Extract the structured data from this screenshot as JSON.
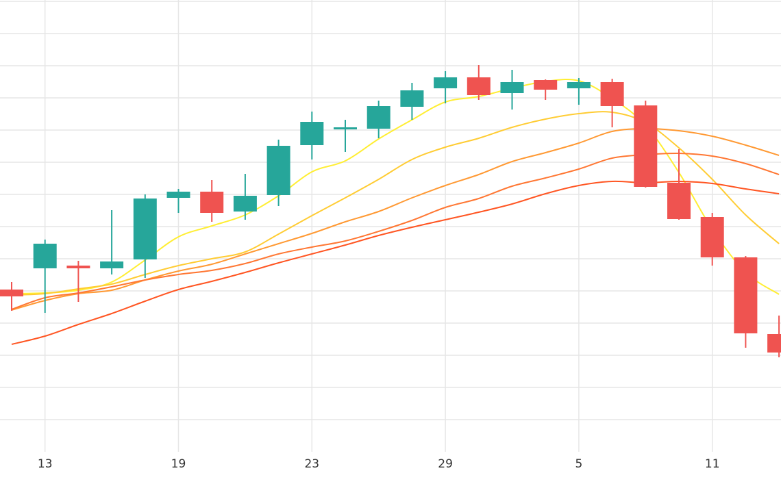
{
  "chart_data": {
    "type": "candlestick",
    "title": "",
    "xlabel": "",
    "ylabel": "",
    "x_tick_labels": [
      {
        "index": 1,
        "label": "13"
      },
      {
        "index": 5,
        "label": "19"
      },
      {
        "index": 9,
        "label": "23"
      },
      {
        "index": 13,
        "label": "29"
      },
      {
        "index": 17,
        "label": "5"
      },
      {
        "index": 21,
        "label": "11"
      }
    ],
    "y_tick_labels_visible": false,
    "ylim": [
      0,
      660
    ],
    "y_gridlines": [
      47,
      94,
      141,
      188,
      235,
      282,
      329,
      376,
      423,
      470,
      517,
      564,
      611,
      658
    ],
    "grid": true,
    "legend": "none",
    "up_color": "#26a69a",
    "down_color": "#ef5350",
    "candles": [
      {
        "open": 237,
        "close": 227,
        "high": 248,
        "low": 206
      },
      {
        "open": 268,
        "close": 304,
        "high": 310,
        "low": 203
      },
      {
        "open": 272,
        "close": 268,
        "high": 279,
        "low": 219
      },
      {
        "open": 268,
        "close": 278,
        "high": 353,
        "low": 259
      },
      {
        "open": 281,
        "close": 370,
        "high": 376,
        "low": 254
      },
      {
        "open": 371,
        "close": 380,
        "high": 384,
        "low": 349
      },
      {
        "open": 380,
        "close": 349,
        "high": 397,
        "low": 336
      },
      {
        "open": 351,
        "close": 374,
        "high": 406,
        "low": 339
      },
      {
        "open": 375,
        "close": 447,
        "high": 456,
        "low": 359
      },
      {
        "open": 448,
        "close": 482,
        "high": 497,
        "low": 427
      },
      {
        "open": 474,
        "close": 474,
        "high": 485,
        "low": 438
      },
      {
        "open": 472,
        "close": 505,
        "high": 513,
        "low": 458
      },
      {
        "open": 504,
        "close": 528,
        "high": 539,
        "low": 485
      },
      {
        "open": 531,
        "close": 547,
        "high": 556,
        "low": 509
      },
      {
        "open": 547,
        "close": 521,
        "high": 565,
        "low": 514
      },
      {
        "open": 524,
        "close": 540,
        "high": 558,
        "low": 500
      },
      {
        "open": 543,
        "close": 529,
        "high": 544,
        "low": 514
      },
      {
        "open": 531,
        "close": 540,
        "high": 546,
        "low": 507
      },
      {
        "open": 540,
        "close": 505,
        "high": 545,
        "low": 474
      },
      {
        "open": 506,
        "close": 387,
        "high": 513,
        "low": 386
      },
      {
        "open": 393,
        "close": 340,
        "high": 442,
        "low": 339
      },
      {
        "open": 343,
        "close": 284,
        "high": 349,
        "low": 272
      },
      {
        "open": 284,
        "close": 173,
        "high": 286,
        "low": 152
      },
      {
        "open": 172,
        "close": 145,
        "high": 199,
        "low": 138
      }
    ],
    "series": [
      {
        "color": "#ffee33",
        "values": [
          231,
          232,
          236,
          248,
          280,
          314,
          330,
          346,
          374,
          409,
          425,
          457,
          485,
          511,
          519,
          531,
          541,
          542,
          516,
          477,
          408,
          325,
          262,
          230
        ]
      },
      {
        "color": "#ffcc33",
        "values": [
          229,
          231,
          238,
          245,
          259,
          272,
          282,
          292,
          318,
          345,
          371,
          398,
          427,
          445,
          458,
          474,
          486,
          494,
          496,
          481,
          444,
          398,
          346,
          304
        ]
      },
      {
        "color": "#ff9933",
        "values": [
          207,
          221,
          231,
          236,
          251,
          264,
          274,
          289,
          304,
          319,
          336,
          351,
          371,
          389,
          405,
          424,
          437,
          451,
          468,
          472,
          469,
          461,
          448,
          433
        ]
      },
      {
        "color": "#ff7733",
        "values": [
          208,
          225,
          232,
          241,
          251,
          259,
          265,
          275,
          289,
          299,
          308,
          322,
          338,
          357,
          370,
          388,
          400,
          413,
          429,
          434,
          436,
          432,
          421,
          405
        ]
      },
      {
        "color": "#ff5522",
        "values": [
          157,
          169,
          186,
          202,
          220,
          237,
          249,
          262,
          276,
          289,
          302,
          316,
          328,
          339,
          350,
          362,
          377,
          389,
          395,
          393,
          395,
          392,
          384,
          377
        ]
      }
    ]
  }
}
